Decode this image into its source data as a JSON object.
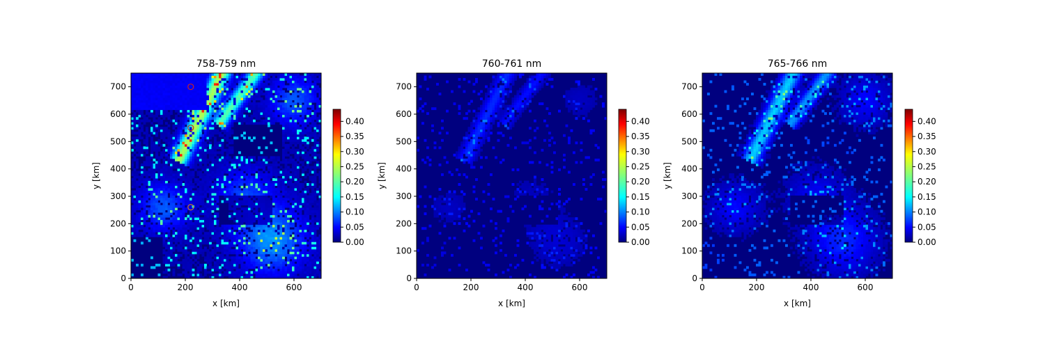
{
  "figure": {
    "panels": [
      {
        "title": "758-759 nm",
        "xlabel": "x [km]",
        "ylabel": "y [km]"
      },
      {
        "title": "760-761 nm",
        "xlabel": "x [km]",
        "ylabel": "y [km]"
      },
      {
        "title": "765-766 nm",
        "xlabel": "x [km]",
        "ylabel": "y [km]"
      }
    ]
  },
  "chart_data": [
    {
      "type": "heatmap",
      "title": "758-759 nm",
      "xlabel": "x [km]",
      "ylabel": "y [km]",
      "xlim": [
        0,
        700
      ],
      "ylim": [
        0,
        750
      ],
      "xticks": [
        0,
        200,
        400,
        600
      ],
      "yticks": [
        0,
        100,
        200,
        300,
        400,
        500,
        600,
        700
      ],
      "colormap": "jet",
      "colorbar": {
        "min": 0.0,
        "max": 0.44,
        "ticks": [
          "0.00",
          "0.05",
          "0.10",
          "0.15",
          "0.20",
          "0.25",
          "0.30",
          "0.35",
          "0.40"
        ]
      },
      "field_intensity": 1.0,
      "markers": [
        {
          "x": 220,
          "y": 700,
          "color": "#cc2222"
        },
        {
          "x": 220,
          "y": 550,
          "color": "#cc2222"
        },
        {
          "x": 220,
          "y": 260,
          "color": "#cc7722"
        }
      ]
    },
    {
      "type": "heatmap",
      "title": "760-761 nm",
      "xlabel": "x [km]",
      "ylabel": "y [km]",
      "xlim": [
        0,
        700
      ],
      "ylim": [
        0,
        750
      ],
      "xticks": [
        0,
        200,
        400,
        600
      ],
      "yticks": [
        0,
        100,
        200,
        300,
        400,
        500,
        600,
        700
      ],
      "colormap": "jet",
      "colorbar": null,
      "field_intensity": 0.3,
      "markers": []
    },
    {
      "type": "heatmap",
      "title": "765-766 nm",
      "xlabel": "x [km]",
      "ylabel": "y [km]",
      "xlim": [
        0,
        700
      ],
      "ylim": [
        0,
        750
      ],
      "xticks": [
        0,
        200,
        400,
        600
      ],
      "yticks": [
        0,
        100,
        200,
        300,
        400,
        500,
        600,
        700
      ],
      "colormap": "jet",
      "colorbar": {
        "min": 0.0,
        "max": 0.44,
        "ticks": [
          "0.00",
          "0.05",
          "0.10",
          "0.15",
          "0.20",
          "0.25",
          "0.30",
          "0.35",
          "0.40"
        ]
      },
      "field_intensity": 0.6,
      "markers": []
    }
  ]
}
